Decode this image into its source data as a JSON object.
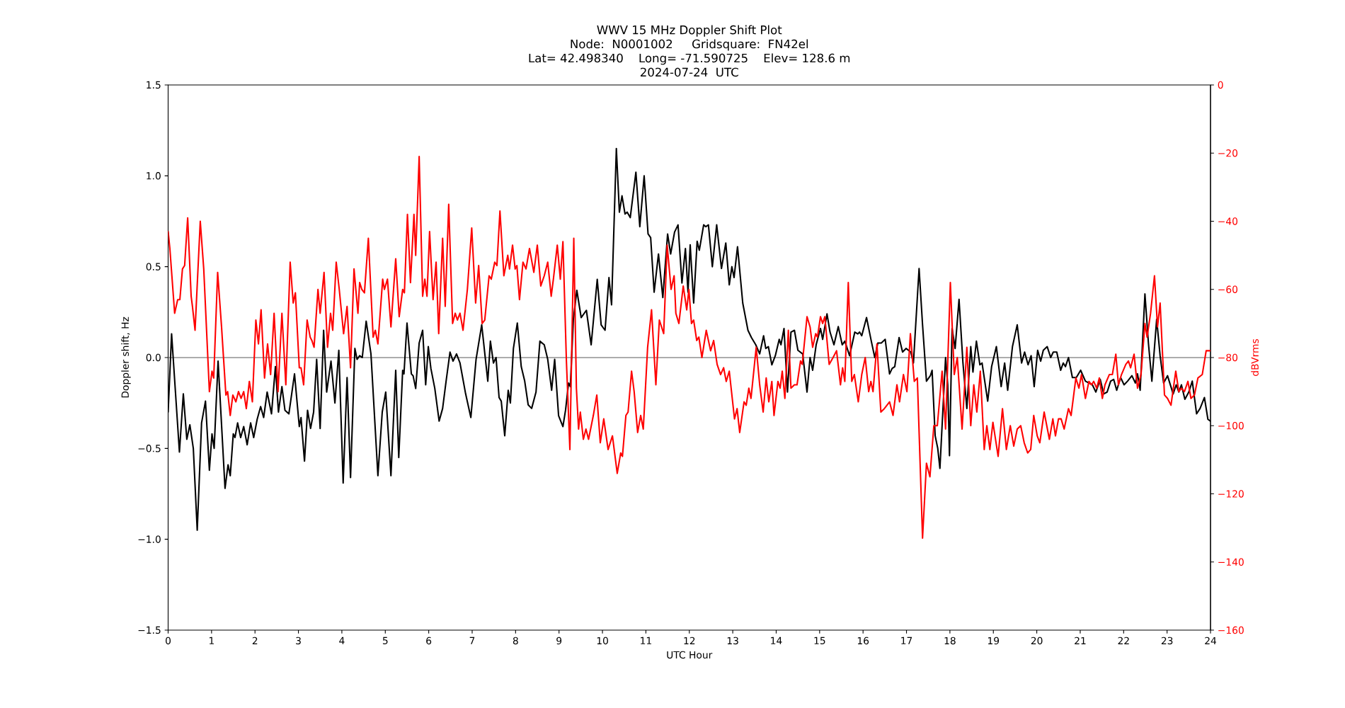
{
  "chart_data": {
    "type": "line",
    "title": "WWV 15 MHz Doppler Shift Plot\nNode:  N0001002     Gridsquare:  FN42el\nLat= 42.498340    Long= -71.590725    Elev= 128.6 m\n2024-07-24  UTC",
    "xlabel": "UTC Hour",
    "ylabel": "Doppler shift, Hz",
    "y2label": "dBVrms",
    "xlim": [
      0,
      24
    ],
    "xticks": [
      0,
      1,
      2,
      3,
      4,
      5,
      6,
      7,
      8,
      9,
      10,
      11,
      12,
      13,
      14,
      15,
      16,
      17,
      18,
      19,
      20,
      21,
      22,
      23,
      24
    ],
    "ylim": [
      -1.5,
      1.5
    ],
    "yticks": [
      {
        "value": -1.5,
        "label": "−1.5"
      },
      {
        "value": -1.0,
        "label": "−1.0"
      },
      {
        "value": -0.5,
        "label": "−0.5"
      },
      {
        "value": 0,
        "label": "0.0"
      },
      {
        "value": 0.5,
        "label": "0.5"
      },
      {
        "value": 1.0,
        "label": "1.0"
      },
      {
        "value": 1.5,
        "label": "1.5"
      }
    ],
    "y2lim": [
      -160,
      0
    ],
    "y2ticks": [
      {
        "value": -160,
        "label": "−160"
      },
      {
        "value": -140,
        "label": "−140"
      },
      {
        "value": -120,
        "label": "−120"
      },
      {
        "value": -100,
        "label": "−100"
      },
      {
        "value": -80,
        "label": "−80"
      },
      {
        "value": -60,
        "label": "−60"
      },
      {
        "value": -40,
        "label": "−40"
      },
      {
        "value": -20,
        "label": "−20"
      },
      0
    ],
    "ref_lines": [
      {
        "axis": "y",
        "value": 0,
        "color": "#808080"
      }
    ],
    "series": [
      {
        "color": "#000000",
        "x": [
          0,
          0.08,
          0.26,
          0.35,
          0.43,
          0.5,
          0.58,
          0.67,
          0.77,
          0.86,
          0.95,
          1.01,
          1.06,
          1.15,
          1.31,
          1.38,
          1.43,
          1.5,
          1.54,
          1.6,
          1.67,
          1.74,
          1.82,
          1.9,
          1.97,
          2.05,
          2.13,
          2.2,
          2.28,
          2.38,
          2.47,
          2.54,
          2.62,
          2.69,
          2.78,
          2.91,
          3.02,
          3.06,
          3.14,
          3.21,
          3.28,
          3.35,
          3.42,
          3.5,
          3.58,
          3.65,
          3.75,
          3.84,
          3.93,
          4.03,
          4.12,
          4.2,
          4.3,
          4.35,
          4.41,
          4.47,
          4.56,
          4.67,
          4.83,
          4.93,
          5.01,
          5.13,
          5.24,
          5.31,
          5.4,
          5.43,
          5.5,
          5.6,
          5.64,
          5.7,
          5.78,
          5.86,
          5.93,
          5.99,
          6.05,
          6.14,
          6.24,
          6.32,
          6.4,
          6.49,
          6.56,
          6.64,
          6.72,
          6.85,
          6.97,
          7.09,
          7.22,
          7.36,
          7.42,
          7.49,
          7.55,
          7.62,
          7.67,
          7.75,
          7.83,
          7.88,
          7.95,
          8.04,
          8.13,
          8.21,
          8.29,
          8.37,
          8.47,
          8.56,
          8.66,
          8.74,
          8.83,
          8.9,
          8.99,
          9.09,
          9.15,
          9.22,
          9.26,
          9.33,
          9.41,
          9.51,
          9.63,
          9.74,
          9.88,
          9.97,
          10.06,
          10.15,
          10.21,
          10.32,
          10.39,
          10.45,
          10.52,
          10.57,
          10.64,
          10.77,
          10.86,
          10.96,
          11.05,
          11.11,
          11.19,
          11.29,
          11.39,
          11.5,
          11.57,
          11.66,
          11.74,
          11.83,
          11.91,
          11.97,
          12.02,
          12.1,
          12.18,
          12.23,
          12.33,
          12.38,
          12.44,
          12.53,
          12.63,
          12.74,
          12.84,
          12.92,
          12.98,
          13.03,
          13.11,
          13.23,
          13.35,
          13.43,
          13.53,
          13.62,
          13.71,
          13.76,
          13.82,
          13.9,
          13.98,
          14.07,
          14.11,
          14.18,
          14.26,
          14.34,
          14.42,
          14.5,
          14.61,
          14.71,
          14.78,
          14.84,
          14.92,
          15.02,
          15.07,
          15.17,
          15.24,
          15.33,
          15.43,
          15.52,
          15.58,
          15.69,
          15.81,
          15.88,
          15.92,
          15.97,
          16.08,
          16.19,
          16.27,
          16.34,
          16.42,
          16.51,
          16.61,
          16.67,
          16.73,
          16.83,
          16.91,
          16.99,
          17.1,
          17.16,
          17.29,
          17.37,
          17.46,
          17.55,
          17.59,
          17.66,
          17.72,
          17.77,
          17.9,
          17.95,
          17.99,
          18.05,
          18.12,
          18.21,
          18.3,
          18.39,
          18.48,
          18.53,
          18.61,
          18.69,
          18.74,
          18.87,
          18.96,
          19.07,
          19.18,
          19.26,
          19.33,
          19.44,
          19.55,
          19.65,
          19.72,
          19.8,
          19.87,
          19.94,
          20.02,
          20.09,
          20.15,
          20.24,
          20.32,
          20.38,
          20.46,
          20.55,
          20.61,
          20.66,
          20.73,
          20.82,
          20.91,
          21.01,
          21.12,
          21.2,
          21.28,
          21.36,
          21.46,
          21.54,
          21.62,
          21.7,
          21.77,
          21.84,
          21.93,
          22.01,
          22.09,
          22.19,
          22.27,
          22.32,
          22.38,
          22.49,
          22.57,
          22.65,
          22.76,
          22.84,
          22.92,
          23.01,
          23.14,
          23.21,
          23.27,
          23.33,
          23.41,
          23.5,
          23.58,
          23.68,
          23.76,
          23.86,
          23.94,
          24
        ],
        "values": [
          -0.3,
          0.13,
          -0.52,
          -0.2,
          -0.45,
          -0.37,
          -0.5,
          -0.95,
          -0.36,
          -0.24,
          -0.62,
          -0.42,
          -0.5,
          -0.02,
          -0.72,
          -0.59,
          -0.65,
          -0.42,
          -0.44,
          -0.36,
          -0.44,
          -0.38,
          -0.48,
          -0.36,
          -0.44,
          -0.34,
          -0.27,
          -0.33,
          -0.19,
          -0.31,
          -0.05,
          -0.3,
          -0.16,
          -0.29,
          -0.31,
          -0.09,
          -0.38,
          -0.33,
          -0.57,
          -0.29,
          -0.39,
          -0.3,
          -0.01,
          -0.39,
          0.15,
          -0.19,
          -0.02,
          -0.25,
          0.04,
          -0.69,
          -0.11,
          -0.66,
          0.05,
          -0.01,
          0.01,
          0,
          0.2,
          0.02,
          -0.65,
          -0.3,
          -0.19,
          -0.65,
          -0.07,
          -0.55,
          -0.07,
          -0.09,
          0.19,
          -0.09,
          -0.1,
          -0.17,
          0.08,
          0.15,
          -0.15,
          0.06,
          -0.06,
          -0.17,
          -0.35,
          -0.28,
          -0.13,
          0.03,
          -0.02,
          0.02,
          -0.03,
          -0.2,
          -0.33,
          -0.01,
          0.18,
          -0.13,
          0.09,
          -0.03,
          0,
          -0.22,
          -0.24,
          -0.43,
          -0.18,
          -0.25,
          0.05,
          0.19,
          -0.05,
          -0.13,
          -0.26,
          -0.28,
          -0.19,
          0.09,
          0.07,
          -0.01,
          -0.18,
          -0.01,
          -0.32,
          -0.38,
          -0.29,
          -0.14,
          -0.16,
          0.21,
          0.37,
          0.22,
          0.26,
          0.07,
          0.43,
          0.18,
          0.15,
          0.44,
          0.29,
          1.15,
          0.8,
          0.89,
          0.79,
          0.8,
          0.77,
          1.02,
          0.72,
          1,
          0.68,
          0.66,
          0.36,
          0.57,
          0.33,
          0.68,
          0.57,
          0.69,
          0.73,
          0.41,
          0.6,
          0.36,
          0.62,
          0.3,
          0.64,
          0.59,
          0.73,
          0.72,
          0.73,
          0.5,
          0.73,
          0.49,
          0.63,
          0.4,
          0.5,
          0.44,
          0.61,
          0.3,
          0.15,
          0.11,
          0.07,
          0.02,
          0.12,
          0.05,
          0.06,
          -0.04,
          0.01,
          0.1,
          0.07,
          0.16,
          -0.19,
          0.14,
          0.15,
          0.04,
          0.02,
          -0.19,
          0,
          -0.07,
          0.07,
          0.16,
          0.1,
          0.24,
          0.14,
          0.07,
          0.17,
          0.07,
          0.09,
          0.01,
          0.14,
          0.13,
          0.14,
          0.12,
          0.22,
          0.09,
          0,
          0.08,
          0.08,
          0.1,
          -0.09,
          -0.06,
          -0.05,
          0.11,
          0.03,
          0.05,
          0.03,
          -0.03,
          0.49,
          0.18,
          -0.13,
          -0.1,
          -0.07,
          -0.43,
          -0.5,
          -0.61,
          0,
          -0.15,
          -0.54,
          0.16,
          0.05,
          0.32,
          -0.03,
          -0.28,
          0.06,
          -0.08,
          0.09,
          -0.04,
          -0.03,
          -0.24,
          -0.05,
          0.06,
          -0.16,
          -0.03,
          -0.18,
          0.06,
          0.18,
          -0.03,
          0.03,
          -0.04,
          0.01,
          -0.16,
          0.04,
          -0.02,
          0.04,
          0.06,
          0,
          0.03,
          0.03,
          -0.07,
          -0.03,
          -0.05,
          0,
          -0.11,
          -0.11,
          -0.07,
          -0.13,
          -0.14,
          -0.15,
          -0.19,
          -0.12,
          -0.2,
          -0.19,
          -0.13,
          -0.12,
          -0.18,
          -0.11,
          -0.15,
          -0.13,
          -0.1,
          -0.14,
          -0.09,
          -0.18,
          0.35,
          0.08,
          -0.13,
          0.21,
          0.01,
          -0.14,
          -0.1,
          -0.2,
          -0.15,
          -0.19,
          -0.15,
          -0.23,
          -0.19,
          -0.13,
          -0.31,
          -0.28,
          -0.22,
          -0.34,
          -0.35
        ]
      },
      {
        "color": "#ff0000",
        "axis": "y2",
        "x": [
          0,
          0.04,
          0.15,
          0.22,
          0.27,
          0.33,
          0.38,
          0.45,
          0.53,
          0.56,
          0.62,
          0.74,
          0.82,
          0.95,
          1.01,
          1.05,
          1.14,
          1.23,
          1.33,
          1.37,
          1.43,
          1.49,
          1.56,
          1.62,
          1.68,
          1.74,
          1.8,
          1.87,
          1.94,
          2.02,
          2.08,
          2.14,
          2.22,
          2.29,
          2.36,
          2.44,
          2.53,
          2.62,
          2.71,
          2.81,
          2.88,
          2.93,
          3.02,
          3.06,
          3.12,
          3.2,
          3.27,
          3.31,
          3.36,
          3.45,
          3.5,
          3.59,
          3.67,
          3.74,
          3.79,
          3.87,
          3.94,
          4.04,
          4.12,
          4.2,
          4.28,
          4.37,
          4.41,
          4.46,
          4.52,
          4.61,
          4.72,
          4.77,
          4.83,
          4.94,
          4.98,
          5.05,
          5.13,
          5.24,
          5.32,
          5.4,
          5.44,
          5.51,
          5.58,
          5.66,
          5.7,
          5.78,
          5.86,
          5.91,
          5.96,
          6.02,
          6.1,
          6.17,
          6.23,
          6.32,
          6.38,
          6.46,
          6.55,
          6.61,
          6.66,
          6.72,
          6.79,
          6.89,
          6.99,
          7.08,
          7.15,
          7.23,
          7.29,
          7.39,
          7.44,
          7.52,
          7.57,
          7.64,
          7.73,
          7.82,
          7.86,
          7.93,
          7.99,
          8.03,
          8.09,
          8.17,
          8.24,
          8.32,
          8.42,
          8.5,
          8.58,
          8.66,
          8.74,
          8.82,
          8.87,
          8.96,
          9.03,
          9.09,
          9.17,
          9.25,
          9.34,
          9.4,
          9.45,
          9.49,
          9.56,
          9.62,
          9.68,
          9.79,
          9.87,
          9.95,
          10.03,
          10.13,
          10.23,
          10.34,
          10.42,
          10.46,
          10.54,
          10.59,
          10.67,
          10.73,
          10.81,
          10.88,
          10.94,
          11.04,
          11.13,
          11.23,
          11.31,
          11.41,
          11.49,
          11.58,
          11.65,
          11.69,
          11.76,
          11.86,
          11.94,
          11.99,
          12.05,
          12.1,
          12.17,
          12.22,
          12.29,
          12.39,
          12.49,
          12.56,
          12.64,
          12.72,
          12.79,
          12.85,
          12.92,
          13.04,
          13.1,
          13.16,
          13.26,
          13.31,
          13.37,
          13.42,
          13.54,
          13.62,
          13.7,
          13.77,
          13.83,
          13.9,
          13.95,
          14.04,
          14.09,
          14.14,
          14.2,
          14.28,
          14.34,
          14.42,
          14.48,
          14.56,
          14.6,
          14.71,
          14.78,
          14.84,
          14.91,
          14.95,
          15.02,
          15.07,
          15.12,
          15.22,
          15.31,
          15.39,
          15.48,
          15.53,
          15.58,
          15.66,
          15.74,
          15.8,
          15.89,
          15.97,
          16.05,
          16.13,
          16.18,
          16.23,
          16.32,
          16.41,
          16.49,
          16.61,
          16.69,
          16.78,
          16.84,
          16.93,
          17.01,
          17.09,
          17.18,
          17.25,
          17.37,
          17.46,
          17.54,
          17.63,
          17.71,
          17.82,
          17.9,
          18.01,
          18.1,
          18.17,
          18.28,
          18.39,
          18.48,
          18.55,
          18.62,
          18.7,
          18.79,
          18.85,
          18.92,
          18.99,
          19.11,
          19.21,
          19.3,
          19.39,
          19.47,
          19.55,
          19.63,
          19.71,
          19.79,
          19.86,
          19.93,
          20.01,
          20.07,
          20.17,
          20.29,
          20.37,
          20.43,
          20.5,
          20.56,
          20.63,
          20.73,
          20.79,
          20.86,
          20.9,
          20.97,
          21.03,
          21.12,
          21.2,
          21.26,
          21.31,
          21.38,
          21.44,
          21.51,
          21.57,
          21.67,
          21.74,
          21.82,
          21.88,
          21.95,
          22.05,
          22.11,
          22.16,
          22.24,
          22.32,
          22.4,
          22.49,
          22.54,
          22.62,
          22.71,
          22.78,
          22.84,
          22.94,
          23.01,
          23.09,
          23.2,
          23.27,
          23.33,
          23.4,
          23.48,
          23.55,
          23.63,
          23.71,
          23.81,
          23.9,
          24
        ],
        "values": [
          -43,
          -48,
          -67,
          -63,
          -63,
          -54,
          -53,
          -39,
          -62,
          -65,
          -72,
          -40,
          -54,
          -90,
          -84,
          -86,
          -55,
          -71,
          -91,
          -90,
          -97,
          -91,
          -93,
          -90,
          -92,
          -90,
          -95,
          -87,
          -93,
          -69,
          -76,
          -66,
          -86,
          -76,
          -85,
          -67,
          -90,
          -67,
          -88,
          -52,
          -64,
          -61,
          -83,
          -83,
          -88,
          -69,
          -74,
          -75,
          -77,
          -60,
          -67,
          -55,
          -77,
          -67,
          -72,
          -52,
          -60,
          -73,
          -65,
          -83,
          -54,
          -67,
          -58,
          -60,
          -61,
          -45,
          -74,
          -72,
          -76,
          -57,
          -60,
          -57,
          -71,
          -51,
          -68,
          -60,
          -61,
          -38,
          -58,
          -38,
          -50,
          -21,
          -62,
          -57,
          -62,
          -43,
          -63,
          -52,
          -73,
          -45,
          -65,
          -35,
          -70,
          -67,
          -69,
          -67,
          -72,
          -60,
          -42,
          -64,
          -53,
          -70,
          -69,
          -56,
          -57,
          -52,
          -53,
          -37,
          -56,
          -50,
          -54,
          -47,
          -54,
          -53,
          -63,
          -52,
          -54,
          -48,
          -55,
          -47,
          -59,
          -56,
          -52,
          -62,
          -57,
          -47,
          -57,
          -46,
          -81,
          -107,
          -45,
          -89,
          -101,
          -96,
          -104,
          -101,
          -104,
          -97,
          -91,
          -105,
          -98,
          -107,
          -103,
          -114,
          -108,
          -109,
          -97,
          -96,
          -84,
          -90,
          -102,
          -97,
          -101,
          -77,
          -66,
          -88,
          -69,
          -73,
          -47,
          -60,
          -56,
          -67,
          -70,
          -59,
          -66,
          -60,
          -70,
          -69,
          -75,
          -74,
          -80,
          -72,
          -78,
          -75,
          -82,
          -85,
          -83,
          -87,
          -84,
          -98,
          -95,
          -102,
          -93,
          -94,
          -89,
          -92,
          -77,
          -88,
          -96,
          -86,
          -93,
          -87,
          -97,
          -87,
          -89,
          -84,
          -92,
          -72,
          -89,
          -88,
          -88,
          -81,
          -82,
          -68,
          -71,
          -77,
          -73,
          -74,
          -68,
          -70,
          -68,
          -82,
          -80,
          -78,
          -88,
          -83,
          -87,
          -58,
          -87,
          -85,
          -93,
          -85,
          -80,
          -90,
          -87,
          -90,
          -76,
          -96,
          -95,
          -93,
          -97,
          -88,
          -93,
          -85,
          -90,
          -73,
          -87,
          -86,
          -133,
          -111,
          -115,
          -100,
          -100,
          -84,
          -101,
          -58,
          -85,
          -80,
          -101,
          -77,
          -100,
          -88,
          -96,
          -84,
          -107,
          -100,
          -107,
          -99,
          -109,
          -95,
          -107,
          -100,
          -106,
          -101,
          -100,
          -105,
          -108,
          -107,
          -97,
          -103,
          -105,
          -96,
          -104,
          -98,
          -103,
          -98,
          -98,
          -101,
          -95,
          -97,
          -90,
          -86,
          -89,
          -85,
          -92,
          -87,
          -88,
          -87,
          -89,
          -86,
          -92,
          -88,
          -85,
          -85,
          -79,
          -88,
          -85,
          -82,
          -81,
          -83,
          -79,
          -89,
          -85,
          -70,
          -74,
          -67,
          -56,
          -71,
          -64,
          -91,
          -92,
          -94,
          -84,
          -90,
          -89,
          -90,
          -87,
          -92,
          -91,
          -86,
          -85,
          -78,
          -78
        ]
      }
    ]
  }
}
